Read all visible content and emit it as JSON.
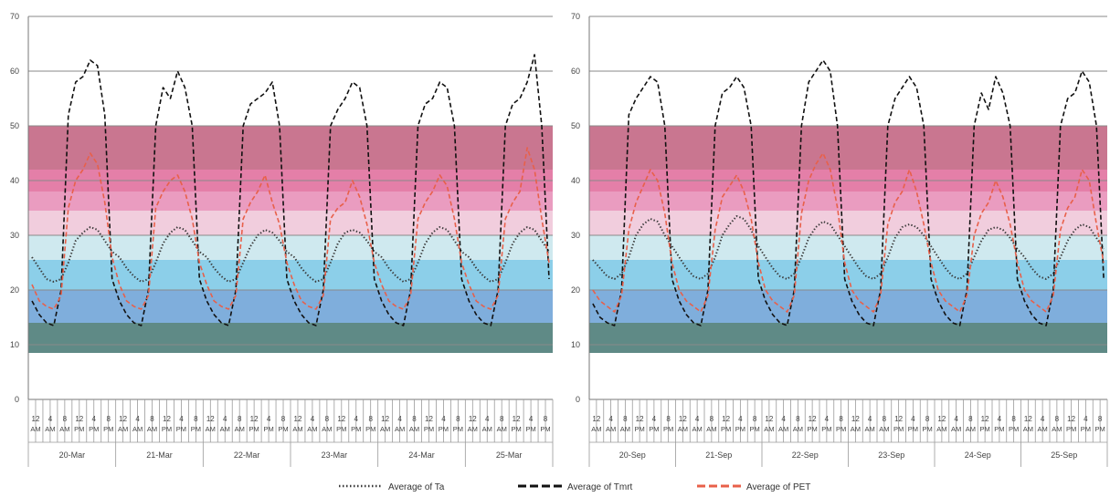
{
  "chart_data": [
    {
      "type": "line",
      "ylim": [
        0,
        70
      ],
      "yticks": [
        0,
        10,
        20,
        30,
        40,
        50,
        60,
        70
      ],
      "grid": true,
      "hour_labels": [
        "12",
        "4",
        "8",
        "12",
        "4",
        "8"
      ],
      "ampm_labels": [
        "AM",
        "AM",
        "AM",
        "PM",
        "PM",
        "PM"
      ],
      "days": [
        "20-Mar",
        "21-Mar",
        "22-Mar",
        "23-Mar",
        "24-Mar",
        "25-Mar"
      ],
      "thermal_bands": [
        {
          "from": 8.5,
          "to": 14,
          "color": "#5f8a86"
        },
        {
          "from": 14,
          "to": 20,
          "color": "#7faedc"
        },
        {
          "from": 20,
          "to": 25.5,
          "color": "#8ccfe9"
        },
        {
          "from": 25.5,
          "to": 30,
          "color": "#cfe9ef"
        },
        {
          "from": 30,
          "to": 34.5,
          "color": "#f1cddd"
        },
        {
          "from": 34.5,
          "to": 38,
          "color": "#ea9cc0"
        },
        {
          "from": 38,
          "to": 42,
          "color": "#e47fa8"
        },
        {
          "from": 42,
          "to": 50,
          "color": "#c97690"
        }
      ],
      "series": [
        {
          "name": "Average of Ta",
          "style": "dotted",
          "color": "#3a3a3a",
          "hourly": [
            26,
            24,
            22,
            21.5,
            22,
            25,
            29,
            30.5,
            31.5,
            31,
            29,
            27,
            26,
            24,
            22.5,
            21.5,
            22,
            25,
            28.5,
            30.5,
            31.5,
            31,
            29,
            27,
            26,
            24,
            22.5,
            21.5,
            22,
            25,
            28,
            30,
            31,
            30.5,
            29,
            27,
            26,
            24,
            22.5,
            21.5,
            22,
            25,
            28.5,
            30.5,
            31,
            30.5,
            29,
            27,
            26,
            24,
            22.5,
            21.5,
            22,
            25,
            28.5,
            30.5,
            31.5,
            31,
            29,
            27,
            26,
            24,
            22.5,
            21.5,
            22,
            25,
            28.5,
            30.5,
            31.5,
            31,
            29,
            27
          ]
        },
        {
          "name": "Average of Tmrt",
          "style": "dashed",
          "color": "#111111",
          "hourly": [
            18,
            15.5,
            14,
            13.5,
            20,
            52,
            58,
            59,
            62,
            61,
            52,
            22,
            18,
            15.5,
            14,
            13.5,
            20,
            50,
            57,
            55,
            60,
            57,
            50,
            22,
            18,
            15.5,
            14,
            13.5,
            20,
            50,
            54,
            55,
            56,
            58,
            50,
            22,
            18,
            15.5,
            14,
            13.5,
            20,
            50,
            53,
            55,
            58,
            57,
            50,
            22,
            18,
            15.5,
            14,
            13.5,
            20,
            50,
            54,
            55,
            58,
            57,
            50,
            22,
            18,
            15.5,
            14,
            13.5,
            20,
            50,
            54,
            55,
            58,
            63,
            50,
            22
          ]
        },
        {
          "name": "Average of PET",
          "style": "dashed",
          "color": "#e8604a",
          "hourly": [
            21,
            18,
            17,
            16.5,
            19,
            35,
            40,
            42,
            45,
            43,
            36,
            26,
            21,
            18,
            17,
            16.5,
            19,
            35,
            38,
            40,
            41,
            38,
            33,
            25,
            21,
            18,
            17,
            16.5,
            19,
            33,
            36,
            38,
            41,
            36,
            32,
            25,
            21,
            18,
            17,
            16.5,
            19,
            33,
            35,
            36,
            40,
            37,
            32,
            25,
            21,
            18,
            17,
            16.5,
            19,
            33,
            36,
            38,
            41,
            39,
            33,
            25,
            21,
            18,
            17,
            16.5,
            19,
            33,
            36,
            38,
            46,
            42,
            33,
            25
          ]
        }
      ]
    },
    {
      "type": "line",
      "ylim": [
        0,
        70
      ],
      "yticks": [
        0,
        10,
        20,
        30,
        40,
        50,
        60,
        70
      ],
      "grid": true,
      "hour_labels": [
        "12",
        "4",
        "8",
        "12",
        "4",
        "8"
      ],
      "ampm_labels": [
        "AM",
        "AM",
        "AM",
        "PM",
        "PM",
        "PM"
      ],
      "days": [
        "20-Sep",
        "21-Sep",
        "22-Sep",
        "23-Sep",
        "24-Sep",
        "25-Sep"
      ],
      "thermal_bands": [
        {
          "from": 8.5,
          "to": 14,
          "color": "#5f8a86"
        },
        {
          "from": 14,
          "to": 20,
          "color": "#7faedc"
        },
        {
          "from": 20,
          "to": 25.5,
          "color": "#8ccfe9"
        },
        {
          "from": 25.5,
          "to": 30,
          "color": "#cfe9ef"
        },
        {
          "from": 30,
          "to": 34.5,
          "color": "#f1cddd"
        },
        {
          "from": 34.5,
          "to": 38,
          "color": "#ea9cc0"
        },
        {
          "from": 38,
          "to": 42,
          "color": "#e47fa8"
        },
        {
          "from": 42,
          "to": 50,
          "color": "#c97690"
        }
      ],
      "series": [
        {
          "name": "Average of Ta",
          "style": "dotted",
          "color": "#3a3a3a",
          "hourly": [
            25.5,
            24,
            22.5,
            22,
            23,
            26,
            30,
            32,
            33,
            32.5,
            30,
            28,
            26,
            24,
            22.5,
            22,
            23,
            26,
            30,
            32,
            33.5,
            33,
            31,
            28,
            26,
            24,
            22.5,
            22,
            23,
            26,
            29.5,
            31.5,
            32.5,
            32,
            30,
            28,
            26,
            24,
            22.5,
            22,
            23,
            26,
            29.5,
            31.5,
            32,
            31.5,
            30,
            28,
            26,
            24,
            22.5,
            22,
            23,
            26,
            29,
            31,
            31.5,
            31,
            29.5,
            27.5,
            26,
            24,
            22.5,
            22,
            23,
            26,
            29,
            31,
            32,
            31.5,
            29.5,
            27.5
          ]
        },
        {
          "name": "Average of Tmrt",
          "style": "dashed",
          "color": "#111111",
          "hourly": [
            17.5,
            15,
            14,
            13.5,
            20,
            52,
            55,
            57,
            59,
            58,
            50,
            22,
            18,
            15.5,
            14,
            13.5,
            20,
            50,
            56,
            57,
            59,
            57,
            50,
            22,
            18,
            15.5,
            14,
            13.5,
            20,
            50,
            58,
            60,
            62,
            60,
            50,
            22,
            18,
            15.5,
            14,
            13.5,
            20,
            50,
            55,
            57,
            59,
            57,
            50,
            22,
            18,
            15.5,
            14,
            13.5,
            20,
            50,
            56,
            53,
            59,
            56,
            50,
            22,
            18,
            15.5,
            14,
            13.5,
            20,
            50,
            55,
            56,
            60,
            58,
            50,
            22
          ]
        },
        {
          "name": "Average of PET",
          "style": "dashed",
          "color": "#e8604a",
          "hourly": [
            20,
            18,
            17,
            16,
            19,
            31,
            36,
            39,
            42,
            40,
            34,
            25,
            20,
            18,
            17,
            16,
            19,
            31,
            37,
            39,
            41,
            38,
            33,
            25,
            20,
            18,
            17,
            16,
            19,
            34,
            40,
            43,
            45,
            42,
            35,
            25,
            20,
            18,
            17,
            16,
            19,
            32,
            36,
            38,
            42,
            38,
            32,
            25,
            20,
            18,
            17,
            16,
            19,
            30,
            34,
            36,
            40,
            37,
            32,
            25,
            20,
            18,
            17,
            16,
            19,
            31,
            35,
            37,
            42,
            40,
            32,
            25
          ]
        }
      ]
    }
  ],
  "legend": [
    {
      "label": "Average of Ta",
      "style": "dotted",
      "color": "#3a3a3a"
    },
    {
      "label": "Average of Tmrt",
      "style": "dashed",
      "color": "#111111"
    },
    {
      "label": "Average of PET",
      "style": "dashed",
      "color": "#e8604a"
    }
  ]
}
